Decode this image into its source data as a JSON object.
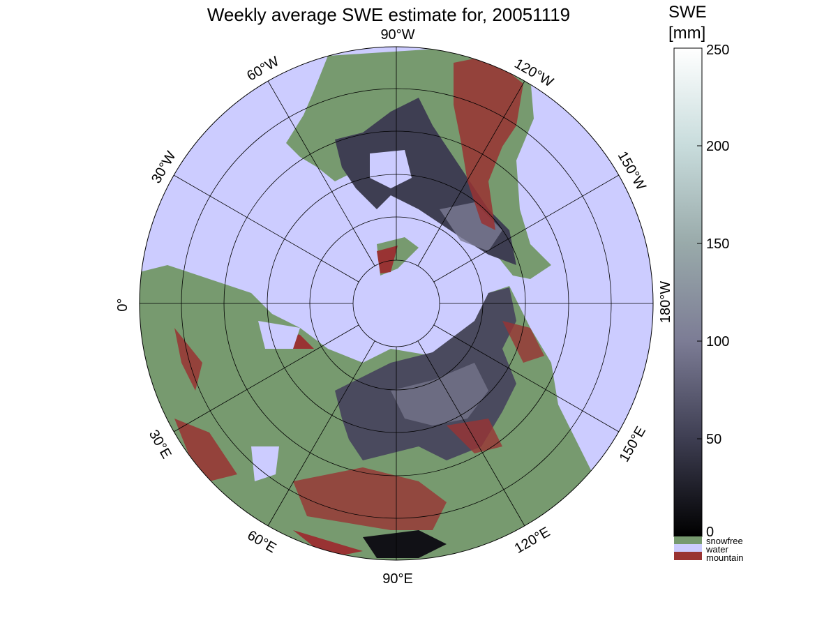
{
  "title": "Weekly average SWE estimate for, 20051119",
  "map": {
    "meridian_labels": [
      {
        "text": "90°W",
        "lon": "90W"
      },
      {
        "text": "60°W",
        "lon": "60W"
      },
      {
        "text": "120°W",
        "lon": "120W"
      },
      {
        "text": "30°W",
        "lon": "30W"
      },
      {
        "text": "150°W",
        "lon": "150W"
      },
      {
        "text": "0°",
        "lon": "0"
      },
      {
        "text": "180°W",
        "lon": "180W"
      },
      {
        "text": "30°E",
        "lon": "30E"
      },
      {
        "text": "150°E",
        "lon": "150E"
      },
      {
        "text": "60°E",
        "lon": "60E"
      },
      {
        "text": "120°E",
        "lon": "120E"
      },
      {
        "text": "90°E",
        "lon": "90E"
      }
    ],
    "colors": {
      "water": "#ccccff",
      "snowfree": "#779a6f",
      "mountain": "#993333",
      "grid": "#000000"
    }
  },
  "colorbar": {
    "title_line1": "SWE",
    "title_line2": "[mm]",
    "range": [
      0,
      250
    ],
    "ticks": [
      "0",
      "50",
      "100",
      "150",
      "200",
      "250"
    ],
    "gradient_colors": [
      "#000000",
      "#3e3e52",
      "#7c7c95",
      "#99aaaa",
      "#c8dcdc",
      "#ffffff"
    ],
    "categories": [
      {
        "label": "snowfree",
        "color": "#779a6f"
      },
      {
        "label": "water",
        "color": "#ccccff"
      },
      {
        "label": "mountain",
        "color": "#993333"
      }
    ]
  }
}
